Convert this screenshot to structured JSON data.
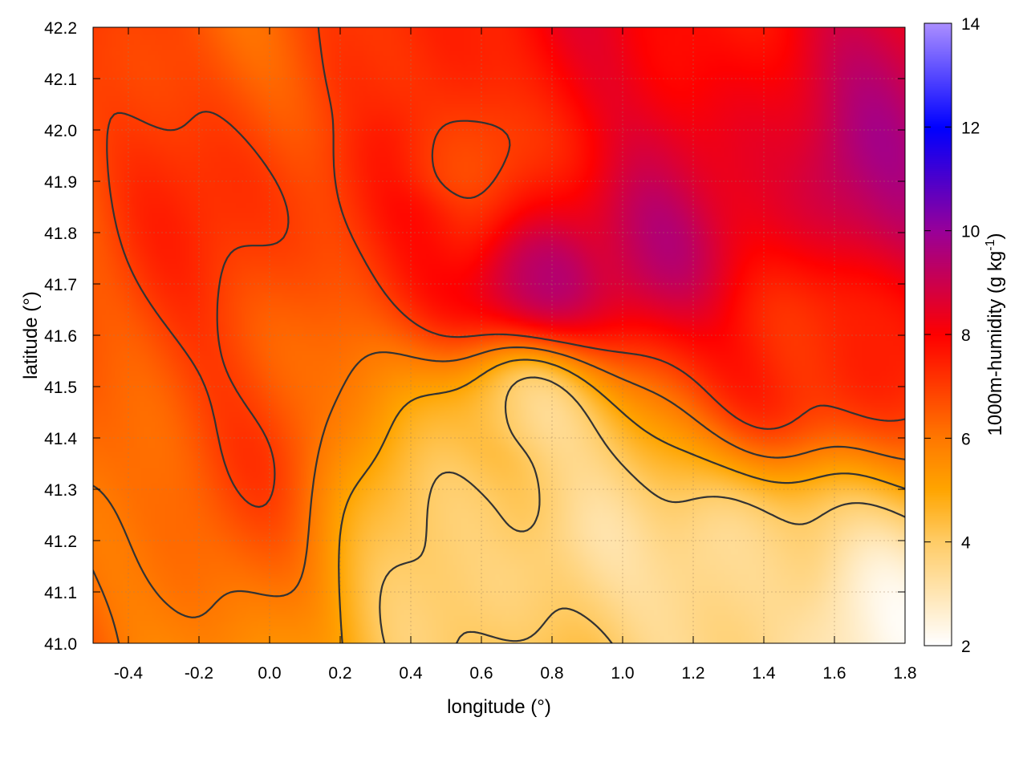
{
  "chart_data": {
    "type": "heatmap",
    "title": "",
    "xlabel": "longitude (°)",
    "ylabel": "latitude (°)",
    "xlim": [
      -0.5,
      1.8
    ],
    "ylim": [
      41.0,
      42.2
    ],
    "x_ticks": [
      -0.4,
      -0.2,
      0.0,
      0.2,
      0.4,
      0.6,
      0.8,
      1.0,
      1.2,
      1.4,
      1.6,
      1.8
    ],
    "x_tick_labels": [
      "-0.4",
      "-0.2",
      "0.0",
      "0.2",
      "0.4",
      "0.6",
      "0.8",
      "1.0",
      "1.2",
      "1.4",
      "1.6",
      "1.8"
    ],
    "y_ticks": [
      41.0,
      41.1,
      41.2,
      41.3,
      41.4,
      41.5,
      41.6,
      41.7,
      41.8,
      41.9,
      42.0,
      42.1,
      42.2
    ],
    "y_tick_labels": [
      "41.0",
      "41.1",
      "41.2",
      "41.3",
      "41.4",
      "41.5",
      "41.6",
      "41.7",
      "41.8",
      "41.9",
      "42.0",
      "42.1",
      "42.2"
    ],
    "grid": true,
    "colorbar": {
      "label_main": "1000m-humidity (g kg",
      "label_exp": "-1",
      "label_end": ")",
      "range": [
        2,
        14
      ],
      "ticks": [
        2,
        4,
        6,
        8,
        10,
        12,
        14
      ],
      "tick_labels": [
        "2",
        "4",
        "6",
        "8",
        "10",
        "12",
        "14"
      ],
      "colors": [
        {
          "value": 2,
          "color": "#ffffff"
        },
        {
          "value": 4,
          "color": "#ffcc66"
        },
        {
          "value": 5,
          "color": "#ffa500"
        },
        {
          "value": 6,
          "color": "#ff7800"
        },
        {
          "value": 8,
          "color": "#ff0000"
        },
        {
          "value": 10,
          "color": "#990099"
        },
        {
          "value": 12,
          "color": "#0000ff"
        },
        {
          "value": 14,
          "color": "#a98dff"
        }
      ]
    },
    "contour_levels": [
      4,
      5,
      6,
      7
    ],
    "contour_color": "#333333",
    "field_peaks": [
      {
        "lon": 0.78,
        "lat": 41.72,
        "value": 9.5
      },
      {
        "lon": 1.05,
        "lat": 41.78,
        "value": 8.8
      },
      {
        "lon": 1.3,
        "lat": 41.95,
        "value": 8.4
      },
      {
        "lon": 1.7,
        "lat": 41.9,
        "value": 9.2
      },
      {
        "lon": 0.9,
        "lat": 42.12,
        "value": 8.2
      },
      {
        "lon": 1.5,
        "lat": 41.55,
        "value": 7.8
      },
      {
        "lon": 0.4,
        "lat": 41.8,
        "value": 7.6
      },
      {
        "lon": -0.1,
        "lat": 41.45,
        "value": 6.8
      },
      {
        "lon": 0.2,
        "lat": 42.1,
        "value": 6.6
      },
      {
        "lon": 0.5,
        "lat": 41.95,
        "value": 7.0
      }
    ],
    "field_lows": [
      {
        "lon": 0.7,
        "lat": 41.45,
        "value": 3.4
      },
      {
        "lon": 1.35,
        "lat": 41.15,
        "value": 3.0
      },
      {
        "lon": 0.85,
        "lat": 41.15,
        "value": 3.6
      },
      {
        "lon": 0.6,
        "lat": 41.3,
        "value": 3.8
      },
      {
        "lon": 1.7,
        "lat": 41.05,
        "value": 2.8
      }
    ]
  }
}
